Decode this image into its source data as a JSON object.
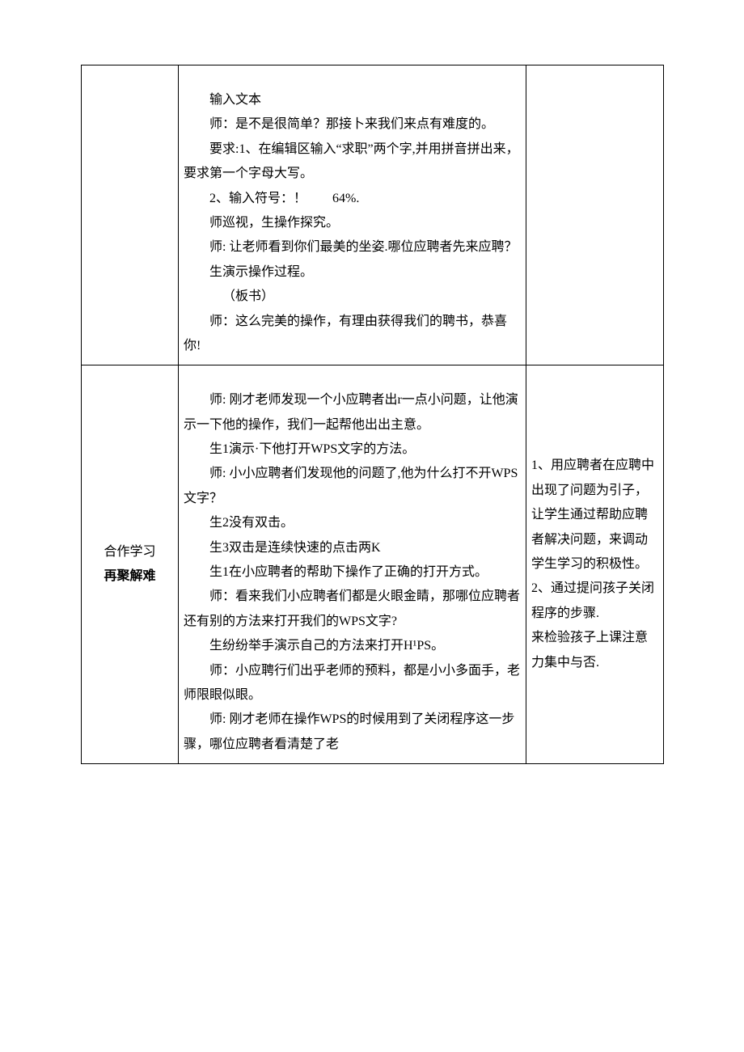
{
  "row1": {
    "middle": [
      "输入文本",
      "师：是不是很简单？那接卜来我们来点有难度的。",
      "要求:1、在编辑区输入“求职”两个字,并用拼音拼出来，要求第一个字母大写。",
      "2、输入符号：！  64%.",
      "师巡视，生操作探究。",
      "师: 让老师看到你们最美的坐姿.哪位应聘者先来应聘？",
      "生演示操作过程。",
      " （板书）",
      "师：这么完美的操作，有理由获得我们的聘书，恭喜你!"
    ]
  },
  "row2": {
    "left_line1": "合作学习",
    "left_line2": "再聚解难",
    "middle": [
      "师: 刚才老师发现一个小应聘者出r一点小问题，让他演示一下他的操作，我们一起帮他出出主意。",
      "生1演示·下他打开WPS文字的方法。",
      "师: 小小应聘者们发现他的问题了,他为什么打不开WPS文字？",
      "生2没有双击。",
      "生3双击是连续快速的点击两K",
      "生1在小应聘者的帮助下操作了正确的打开方式。",
      "师：看来我们小应聘者们都是火眼金睛，那哪位应聘者还有别的方法来打开我们的WPS文字?",
      "生纷纷举手演示自己的方法来打开H¹PS。",
      "师：小应聘行们出乎老师的预料，都是小小多面手，老师限眼似眼。",
      "师: 刚才老师在操作WPS的时候用到了关闭程序这一步骤，哪位应聘者看清楚了老"
    ],
    "right": [
      "1、用应聘者在应聘中出现了问题为引子，让学生通过帮助应聘者解决问题，来调动学生学习的积极性。",
      "2、通过提问孩子关闭程序的步骤.",
      "来检验孩子上课注意力集中与否."
    ]
  }
}
